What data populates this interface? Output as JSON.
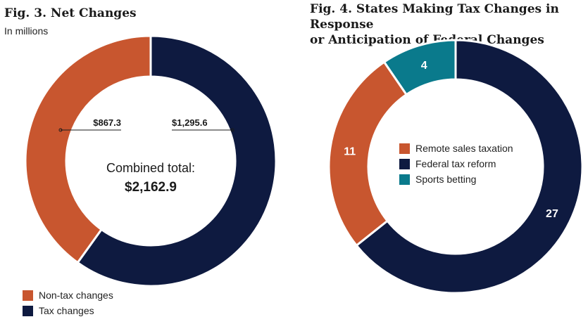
{
  "figure3": {
    "title": "Fig. 3. Net Changes",
    "subtitle": "In millions",
    "center_label": "Combined total:",
    "center_value": "$2,162.9",
    "legend": [
      {
        "label": "Non-tax changes",
        "color": "#c8562f"
      },
      {
        "label": "Tax changes",
        "color": "#0e1a40"
      }
    ]
  },
  "figure4": {
    "title_line1": "Fig. 4. States Making Tax Changes in Response",
    "title_line2": "or Anticipation of Federal Changes",
    "legend": [
      {
        "label": "Remote sales taxation",
        "color": "#c8562f"
      },
      {
        "label": "Federal tax reform",
        "color": "#0e1a40"
      },
      {
        "label": "Sports betting",
        "color": "#0a7a8c"
      }
    ]
  },
  "chart_data": [
    {
      "type": "pie",
      "title": "Fig. 3. Net Changes",
      "subtitle": "In millions",
      "categories": [
        "Tax changes",
        "Non-tax changes"
      ],
      "values": [
        1295.6,
        867.3
      ],
      "value_labels": [
        "$1,295.6",
        "$867.3"
      ],
      "colors": [
        "#0e1a40",
        "#c8562f"
      ],
      "total_label": "$2,162.9",
      "legend_position": "bottom-left"
    },
    {
      "type": "pie",
      "title": "Fig. 4. States Making Tax Changes in Response or Anticipation of Federal Changes",
      "categories": [
        "Federal tax reform",
        "Remote sales taxation",
        "Sports betting"
      ],
      "values": [
        27,
        11,
        4
      ],
      "value_labels": [
        "27",
        "11",
        "4"
      ],
      "colors": [
        "#0e1a40",
        "#c8562f",
        "#0a7a8c"
      ],
      "legend_position": "center"
    }
  ]
}
